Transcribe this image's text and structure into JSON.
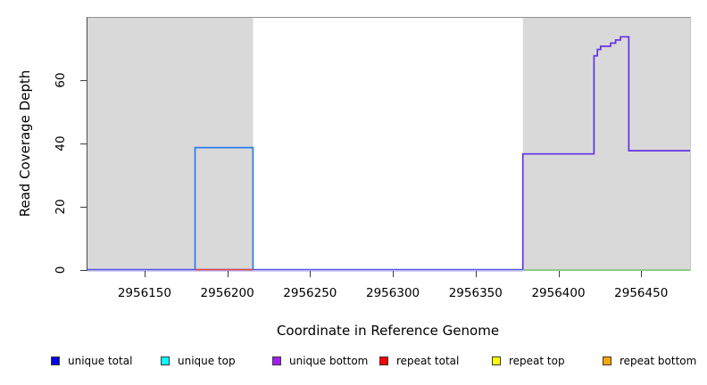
{
  "chart_data": {
    "type": "line",
    "title": "",
    "xlabel": "Coordinate in Reference Genome",
    "ylabel": "Read Coverage Depth",
    "xlim": [
      2956115,
      2956479
    ],
    "ylim": [
      0,
      80
    ],
    "xticks": [
      2956150,
      2956200,
      2956250,
      2956300,
      2956350,
      2956400,
      2956450
    ],
    "yticks": [
      0,
      20,
      40,
      60
    ],
    "grid": false,
    "shade_color": "#d9d9d9",
    "shaded_regions": [
      {
        "x0": 2956115,
        "x1": 2956215
      },
      {
        "x0": 2956378,
        "x1": 2956479
      }
    ],
    "series": [
      {
        "name": "unique total coverage box",
        "color": "#2b7bf0",
        "width": 1.7,
        "points": [
          [
            2956180,
            0
          ],
          [
            2956180,
            39
          ],
          [
            2956215,
            39
          ],
          [
            2956215,
            0
          ]
        ]
      },
      {
        "name": "unique bottom coverage steps",
        "color": "#6333e4",
        "width": 1.7,
        "points": [
          [
            2956378,
            0
          ],
          [
            2956378,
            37
          ],
          [
            2956421,
            37
          ],
          [
            2956421,
            68
          ],
          [
            2956423,
            68
          ],
          [
            2956423,
            70
          ],
          [
            2956425,
            70
          ],
          [
            2956425,
            71
          ],
          [
            2956431,
            71
          ],
          [
            2956431,
            72
          ],
          [
            2956434,
            72
          ],
          [
            2956434,
            73
          ],
          [
            2956437,
            73
          ],
          [
            2956437,
            74
          ],
          [
            2956442,
            74
          ],
          [
            2956442,
            38
          ],
          [
            2956479,
            38
          ]
        ]
      },
      {
        "name": "unique zero baseline",
        "color": "#4d55e6",
        "width": 1.3,
        "dy": -0.6,
        "points": [
          [
            2956115,
            0
          ],
          [
            2956378,
            0
          ]
        ]
      },
      {
        "name": "unique zero baseline shadow",
        "color": "#a79dee",
        "width": 1.2,
        "dy": 0.9,
        "points": [
          [
            2956115,
            0
          ],
          [
            2956378,
            0
          ]
        ]
      },
      {
        "name": "repeat total zero baseline",
        "color": "#e8403a",
        "width": 1.4,
        "dy": -0.4,
        "points": [
          [
            2956180,
            0
          ],
          [
            2956215,
            0
          ]
        ]
      },
      {
        "name": "right region zero baseline",
        "color": "#74c476",
        "width": 1.5,
        "dy": 0,
        "points": [
          [
            2956378,
            0
          ],
          [
            2956479,
            0
          ]
        ]
      }
    ],
    "legend": [
      {
        "label": "unique total",
        "color": "#0000ee"
      },
      {
        "label": "unique top",
        "color": "#00ffff"
      },
      {
        "label": "unique bottom",
        "color": "#a020f0"
      },
      {
        "label": "repeat total",
        "color": "#ff0000"
      },
      {
        "label": "repeat top",
        "color": "#ffff00"
      },
      {
        "label": "repeat bottom",
        "color": "#ffa500"
      }
    ],
    "legend_position": "bottom"
  }
}
